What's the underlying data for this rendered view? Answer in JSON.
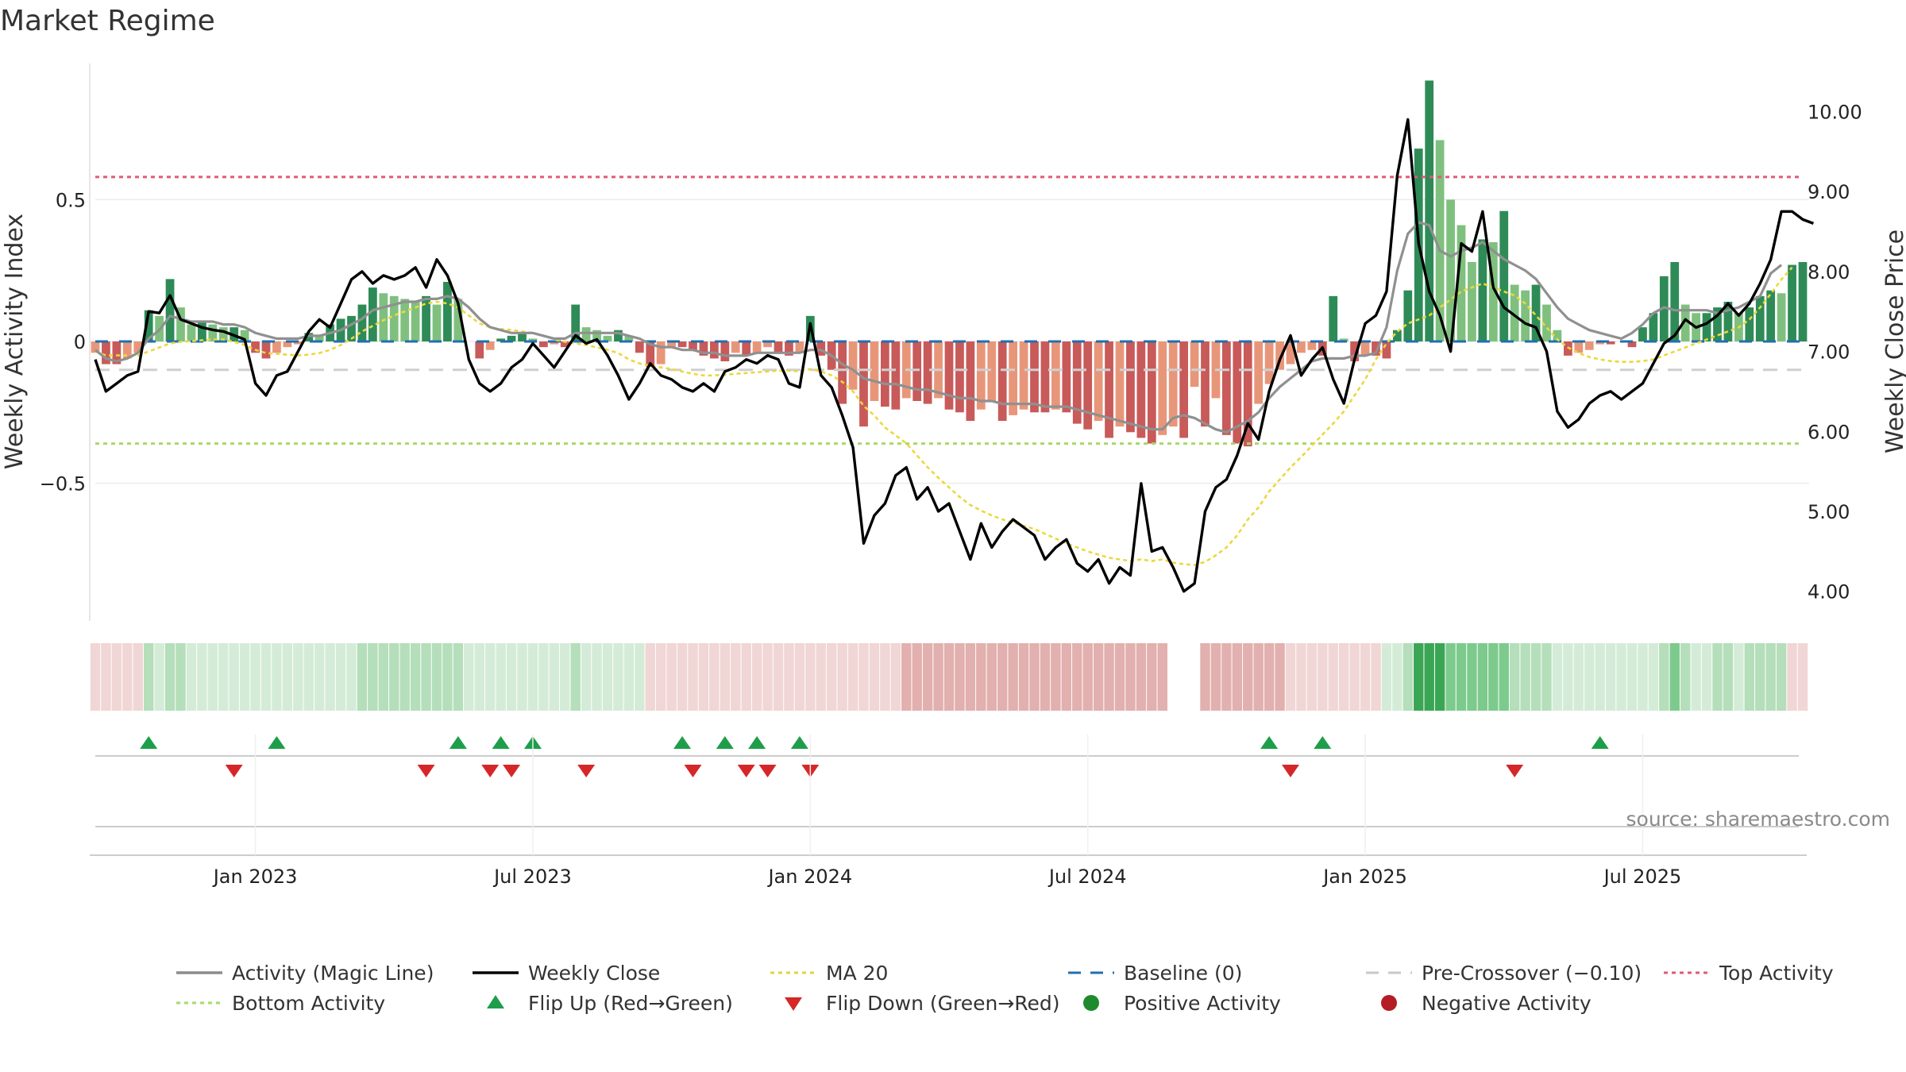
{
  "title": "Market Regime",
  "source": "source: sharemaestro.com",
  "chart_data": {
    "type": "bar",
    "title": "Market Regime",
    "ylabel_left": "Weekly Activity Index",
    "ylabel_right": "Weekly Close Price",
    "left_ticks": [
      {
        "v": 0.5,
        "label": "0.5"
      },
      {
        "v": 0,
        "label": "0"
      },
      {
        "v": -0.5,
        "label": "−0.5"
      }
    ],
    "right_ticks": [
      {
        "v": 10,
        "label": "10.00"
      },
      {
        "v": 9,
        "label": "9.00"
      },
      {
        "v": 8,
        "label": "8.00"
      },
      {
        "v": 7,
        "label": "7.00"
      },
      {
        "v": 6,
        "label": "6.00"
      },
      {
        "v": 5,
        "label": "5.00"
      },
      {
        "v": 4,
        "label": "4.00"
      }
    ],
    "x_ticks": [
      {
        "i": 15,
        "label": "Jan 2023"
      },
      {
        "i": 41,
        "label": "Jul 2023"
      },
      {
        "i": 67,
        "label": "Jan 2024"
      },
      {
        "i": 93,
        "label": "Jul 2024"
      },
      {
        "i": 119,
        "label": "Jan 2025"
      },
      {
        "i": 145,
        "label": "Jul 2025"
      }
    ],
    "ylim_left": [
      -0.98,
      0.98
    ],
    "ylim_right": [
      3.65,
      10.6
    ],
    "x_start": "2022-09-03",
    "x_step_days": 7,
    "levels": {
      "top": 0.58,
      "bottom": -0.36,
      "pre_crossover": -0.1,
      "baseline": 0
    },
    "activity": [
      -0.04,
      -0.08,
      -0.08,
      -0.06,
      -0.04,
      0.11,
      0.09,
      0.22,
      0.12,
      0.06,
      0.07,
      0.06,
      0.05,
      0.05,
      0.04,
      -0.04,
      -0.06,
      -0.04,
      -0.02,
      -0.01,
      0.03,
      0.02,
      0.06,
      0.08,
      0.09,
      0.13,
      0.19,
      0.17,
      0.16,
      0.15,
      0.14,
      0.16,
      0.13,
      0.21,
      0.15,
      0.0,
      -0.06,
      -0.03,
      0.01,
      0.02,
      0.03,
      0.01,
      -0.02,
      -0.01,
      -0.02,
      0.13,
      0.05,
      0.04,
      0.02,
      0.04,
      0.02,
      -0.04,
      -0.09,
      -0.08,
      -0.02,
      -0.02,
      -0.03,
      -0.05,
      -0.06,
      -0.07,
      -0.04,
      -0.05,
      -0.04,
      -0.02,
      -0.04,
      -0.05,
      -0.04,
      0.09,
      -0.05,
      -0.1,
      -0.22,
      -0.17,
      -0.3,
      -0.21,
      -0.23,
      -0.24,
      -0.2,
      -0.21,
      -0.22,
      -0.2,
      -0.24,
      -0.25,
      -0.28,
      -0.24,
      -0.21,
      -0.28,
      -0.26,
      -0.24,
      -0.25,
      -0.25,
      -0.24,
      -0.25,
      -0.29,
      -0.31,
      -0.28,
      -0.34,
      -0.3,
      -0.32,
      -0.34,
      -0.36,
      -0.33,
      -0.3,
      -0.34,
      -0.16,
      -0.3,
      -0.2,
      -0.33,
      -0.36,
      -0.37,
      -0.22,
      -0.15,
      -0.1,
      -0.08,
      -0.04,
      -0.03,
      -0.05,
      0.16,
      0.01,
      -0.07,
      -0.05,
      -0.05,
      -0.06,
      0.04,
      0.18,
      0.68,
      0.92,
      0.71,
      0.5,
      0.41,
      0.28,
      0.36,
      0.35,
      0.46,
      0.2,
      0.18,
      0.2,
      0.13,
      0.04,
      -0.05,
      -0.04,
      -0.03,
      -0.01,
      -0.01,
      0.0,
      -0.02,
      0.05,
      0.1,
      0.23,
      0.28,
      0.13,
      0.1,
      0.1,
      0.12,
      0.14,
      0.1,
      0.12,
      0.16,
      0.18,
      0.17,
      0.27,
      0.28
    ],
    "magic": [
      -0.03,
      -0.06,
      -0.07,
      -0.06,
      -0.04,
      0.01,
      0.04,
      0.09,
      0.08,
      0.07,
      0.07,
      0.07,
      0.06,
      0.06,
      0.05,
      0.03,
      0.02,
      0.01,
      0.01,
      0.01,
      0.02,
      0.02,
      0.03,
      0.04,
      0.06,
      0.08,
      0.11,
      0.12,
      0.13,
      0.14,
      0.14,
      0.15,
      0.15,
      0.16,
      0.15,
      0.12,
      0.08,
      0.05,
      0.04,
      0.03,
      0.03,
      0.03,
      0.02,
      0.01,
      0.01,
      0.03,
      0.03,
      0.03,
      0.03,
      0.03,
      0.02,
      0.01,
      -0.01,
      -0.02,
      -0.02,
      -0.03,
      -0.03,
      -0.04,
      -0.04,
      -0.05,
      -0.05,
      -0.05,
      -0.04,
      -0.04,
      -0.04,
      -0.04,
      -0.04,
      -0.03,
      -0.03,
      -0.05,
      -0.08,
      -0.1,
      -0.13,
      -0.14,
      -0.15,
      -0.15,
      -0.16,
      -0.17,
      -0.17,
      -0.18,
      -0.19,
      -0.2,
      -0.2,
      -0.21,
      -0.21,
      -0.22,
      -0.22,
      -0.22,
      -0.22,
      -0.23,
      -0.23,
      -0.23,
      -0.24,
      -0.25,
      -0.26,
      -0.27,
      -0.28,
      -0.29,
      -0.3,
      -0.31,
      -0.31,
      -0.27,
      -0.26,
      -0.27,
      -0.29,
      -0.31,
      -0.32,
      -0.3,
      -0.28,
      -0.25,
      -0.2,
      -0.16,
      -0.13,
      -0.1,
      -0.07,
      -0.06,
      -0.06,
      -0.06,
      -0.05,
      -0.05,
      -0.04,
      0.05,
      0.25,
      0.38,
      0.42,
      0.41,
      0.32,
      0.3,
      0.32,
      0.33,
      0.35,
      0.32,
      0.29,
      0.27,
      0.25,
      0.22,
      0.17,
      0.12,
      0.08,
      0.06,
      0.04,
      0.03,
      0.02,
      0.01,
      0.03,
      0.06,
      0.1,
      0.12,
      0.11,
      0.11,
      0.11,
      0.11,
      0.1,
      0.11,
      0.12,
      0.14,
      0.16,
      0.24,
      0.27
    ],
    "close": [
      6.9,
      6.5,
      6.6,
      6.7,
      6.75,
      7.5,
      7.48,
      7.7,
      7.4,
      7.35,
      7.3,
      7.27,
      7.25,
      7.2,
      7.15,
      6.6,
      6.45,
      6.7,
      6.75,
      7.0,
      7.25,
      7.4,
      7.3,
      7.6,
      7.9,
      8.0,
      7.85,
      7.95,
      7.9,
      7.95,
      8.05,
      7.8,
      8.15,
      7.95,
      7.6,
      6.9,
      6.6,
      6.5,
      6.6,
      6.8,
      6.9,
      7.1,
      6.95,
      6.8,
      7.0,
      7.2,
      7.1,
      7.15,
      6.95,
      6.7,
      6.4,
      6.6,
      6.85,
      6.7,
      6.65,
      6.55,
      6.5,
      6.6,
      6.5,
      6.75,
      6.8,
      6.9,
      6.85,
      6.95,
      6.9,
      6.6,
      6.55,
      7.35,
      6.7,
      6.55,
      6.2,
      5.8,
      4.6,
      4.95,
      5.1,
      5.45,
      5.55,
      5.15,
      5.3,
      5.0,
      5.1,
      4.75,
      4.4,
      4.85,
      4.55,
      4.75,
      4.9,
      4.8,
      4.7,
      4.4,
      4.55,
      4.65,
      4.35,
      4.25,
      4.4,
      4.1,
      4.3,
      4.2,
      5.35,
      4.5,
      4.55,
      4.3,
      4.0,
      4.1,
      5.0,
      5.3,
      5.4,
      5.7,
      6.1,
      5.9,
      6.5,
      6.9,
      7.2,
      6.7,
      6.9,
      7.05,
      6.65,
      6.35,
      6.9,
      7.35,
      7.45,
      7.75,
      9.2,
      9.9,
      8.35,
      7.75,
      7.45,
      7.0,
      8.35,
      8.25,
      8.75,
      7.8,
      7.55,
      7.45,
      7.35,
      7.3,
      7.0,
      6.25,
      6.05,
      6.15,
      6.35,
      6.45,
      6.5,
      6.4,
      6.5,
      6.6,
      6.85,
      7.1,
      7.2,
      7.4,
      7.3,
      7.35,
      7.45,
      7.6,
      7.45,
      7.6,
      7.85,
      8.15,
      8.75,
      8.75,
      8.65,
      8.6
    ],
    "ma20": [
      7.0,
      6.95,
      6.95,
      6.95,
      6.95,
      7.0,
      7.05,
      7.1,
      7.12,
      7.13,
      7.14,
      7.15,
      7.15,
      7.12,
      7.08,
      7.02,
      6.98,
      6.97,
      6.96,
      6.95,
      6.96,
      6.98,
      7.02,
      7.08,
      7.16,
      7.25,
      7.32,
      7.39,
      7.45,
      7.5,
      7.55,
      7.6,
      7.62,
      7.6,
      7.55,
      7.45,
      7.35,
      7.3,
      7.28,
      7.27,
      7.25,
      7.23,
      7.2,
      7.15,
      7.12,
      7.1,
      7.08,
      7.05,
      7.02,
      6.98,
      6.9,
      6.85,
      6.82,
      6.8,
      6.78,
      6.75,
      6.72,
      6.7,
      6.7,
      6.71,
      6.72,
      6.73,
      6.74,
      6.75,
      6.76,
      6.76,
      6.75,
      6.78,
      6.75,
      6.7,
      6.62,
      6.5,
      6.32,
      6.2,
      6.05,
      5.95,
      5.85,
      5.7,
      5.55,
      5.42,
      5.3,
      5.18,
      5.08,
      5.01,
      4.95,
      4.9,
      4.86,
      4.82,
      4.78,
      4.72,
      4.66,
      4.6,
      4.55,
      4.5,
      4.46,
      4.42,
      4.4,
      4.38,
      4.4,
      4.38,
      4.4,
      4.36,
      4.34,
      4.33,
      4.37,
      4.45,
      4.55,
      4.7,
      4.9,
      5.05,
      5.25,
      5.4,
      5.55,
      5.68,
      5.82,
      5.96,
      6.1,
      6.25,
      6.45,
      6.65,
      6.9,
      7.1,
      7.25,
      7.35,
      7.4,
      7.45,
      7.55,
      7.65,
      7.75,
      7.8,
      7.85,
      7.8,
      7.75,
      7.7,
      7.6,
      7.45,
      7.3,
      7.15,
      7.05,
      6.98,
      6.93,
      6.9,
      6.88,
      6.87,
      6.87,
      6.88,
      6.9,
      6.95,
      7.0,
      7.05,
      7.1,
      7.15,
      7.2,
      7.25,
      7.3,
      7.4,
      7.55,
      7.72,
      7.9,
      8.05
    ]
  },
  "legend": [
    {
      "label": "Activity (Magic Line)",
      "kind": "line",
      "color": "#8c8c8c"
    },
    {
      "label": "Weekly Close",
      "kind": "line",
      "color": "#000000"
    },
    {
      "label": "MA 20",
      "kind": "dotted",
      "color": "#e5d338"
    },
    {
      "label": "Baseline (0)",
      "kind": "dashed",
      "color": "#1f6fb2"
    },
    {
      "label": "Pre-Crossover (−0.10)",
      "kind": "dashed",
      "color": "#c8c8c8"
    },
    {
      "label": "Top Activity",
      "kind": "dotted",
      "color": "#e05a78"
    },
    {
      "label": "Bottom Activity",
      "kind": "dotted",
      "color": "#a8d86a"
    },
    {
      "label": "Flip Up (Red→Green)",
      "kind": "triangle-up",
      "color": "#1e9e4a"
    },
    {
      "label": "Flip Down (Green→Red)",
      "kind": "triangle-down",
      "color": "#d62728"
    },
    {
      "label": "Positive Activity",
      "kind": "circle",
      "color": "#1e8a2e"
    },
    {
      "label": "Negative Activity",
      "kind": "circle",
      "color": "#b51c24"
    }
  ]
}
